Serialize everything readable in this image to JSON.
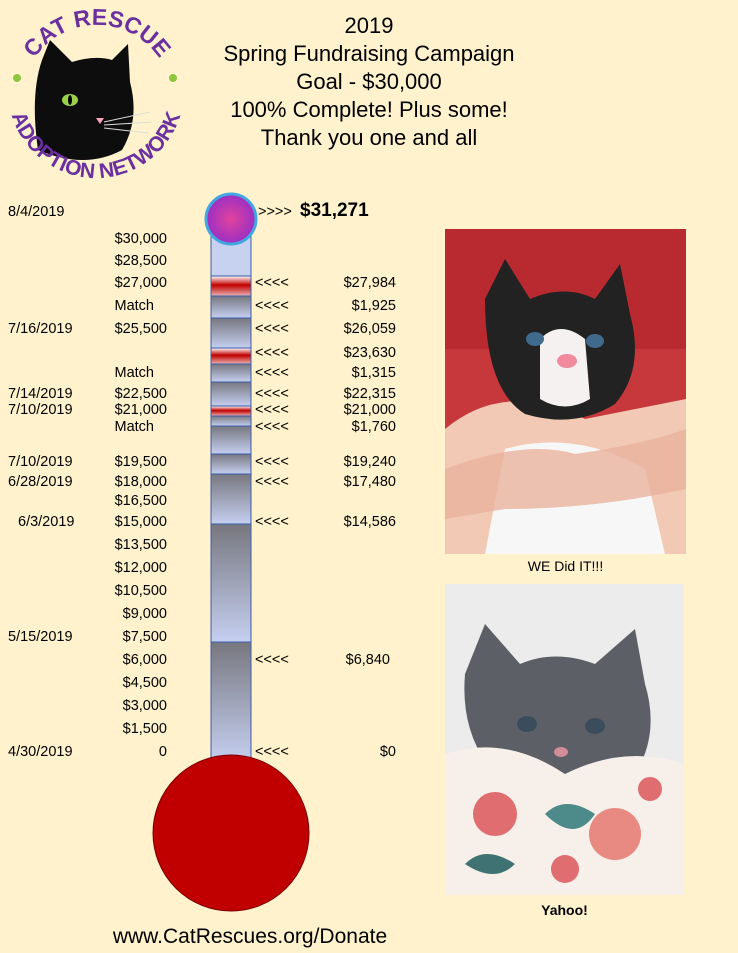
{
  "logo": {
    "text_top": "CAT RESCUE",
    "text_bottom": "ADOPTION NETWORK",
    "icon": "black-cat-icon",
    "ring_color": "#6b2fa0",
    "dot_color": "#8dc63f"
  },
  "header": {
    "year": "2019",
    "campaign": "Spring Fundraising Campaign",
    "goal": "Goal - $30,000",
    "status": "100% Complete!  Plus some!",
    "thanks": "Thank you one and all"
  },
  "top": {
    "date": "8/4/2019",
    "arrow": ">>>>",
    "total": "$31,271"
  },
  "chart_data": {
    "type": "thermometer",
    "goal": 30000,
    "raised": 31271,
    "scale_min": 0,
    "scale_max": 30000,
    "scale_ticks": [
      "$30,000",
      "$28,500",
      "$27,000",
      "Match",
      "$25,500",
      "Match",
      "$22,500",
      "$21,000",
      "Match",
      "$19,500",
      "$18,000",
      "$16,500",
      "$15,000",
      "$13,500",
      "$12,000",
      "$10,500",
      "$9,000",
      "$7,500",
      "$6,000",
      "$4,500",
      "$3,000",
      "$1,500",
      "0"
    ],
    "dates": [
      {
        "label": "7/16/2019",
        "at": "$25,500"
      },
      {
        "label": "7/14/2019",
        "at": "$22,500"
      },
      {
        "label": "7/10/2019",
        "at": "$21,000"
      },
      {
        "label": "7/10/2019",
        "at": "$19,500"
      },
      {
        "label": "6/28/2019",
        "at": "$18,000"
      },
      {
        "label": "6/3/2019",
        "at": "$15,000"
      },
      {
        "label": "5/15/2019",
        "at": "$7,500"
      },
      {
        "label": "4/30/2019",
        "at": "0"
      }
    ],
    "milestones": [
      {
        "amount": "$27,984",
        "arrow": "<<<<",
        "value": 27984
      },
      {
        "amount": "$1,925",
        "arrow": "<<<<",
        "value": 1925
      },
      {
        "amount": "$26,059",
        "arrow": "<<<<",
        "value": 26059
      },
      {
        "amount": "$23,630",
        "arrow": "<<<<",
        "value": 23630
      },
      {
        "amount": "$1,315",
        "arrow": "<<<<",
        "value": 1315
      },
      {
        "amount": "$22,315",
        "arrow": "<<<<",
        "value": 22315
      },
      {
        "amount": "$21,000",
        "arrow": "<<<<",
        "value": 21000
      },
      {
        "amount": "$1,760",
        "arrow": "<<<<",
        "value": 1760
      },
      {
        "amount": "$19,240",
        "arrow": "<<<<",
        "value": 19240
      },
      {
        "amount": "$17,480",
        "arrow": "<<<<",
        "value": 17480
      },
      {
        "amount": "$14,586",
        "arrow": "<<<<",
        "value": 14586
      },
      {
        "amount": "$6,840",
        "arrow": "<<<<",
        "value": 6840
      },
      {
        "amount": "$0",
        "arrow": "<<<<",
        "value": 0
      }
    ],
    "colors": {
      "bulb": "#c00000",
      "top_bulb": "#d63aa0",
      "top_bulb_ring": "#41a7e0",
      "gray_fill": "#8c8c96",
      "blue_fill": "#c7d2f0",
      "red_band": "#c00000"
    }
  },
  "photos": [
    {
      "caption": "WE Did IT!!!",
      "icon": "black-white-kitten-photo"
    },
    {
      "caption": "Yahoo!",
      "icon": "gray-kitten-photo"
    }
  ],
  "footer": {
    "url": "www.CatRescues.org/Donate"
  }
}
